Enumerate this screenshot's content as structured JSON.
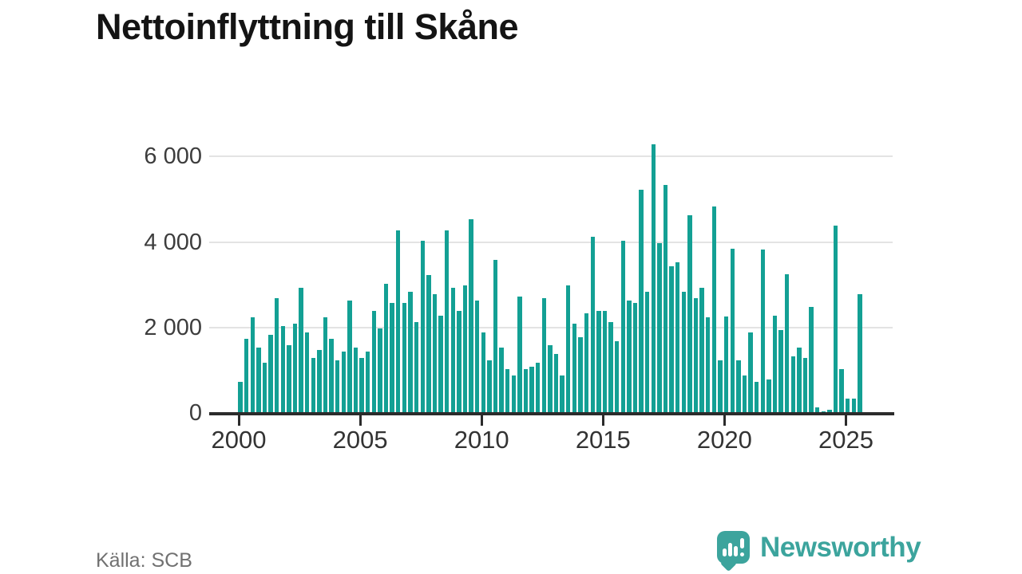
{
  "header": {
    "title": "Nettoinflyttning till Skåne"
  },
  "footer": {
    "source": "Källa: SCB",
    "brand": "Newsworthy"
  },
  "colors": {
    "bar": "#13A094",
    "brand_teal": "#3CA49D",
    "axis": "#2b2b2b",
    "grid": "#e3e3e3",
    "title_text": "#141414",
    "source_text": "#717171"
  },
  "chart_data": {
    "type": "bar",
    "title": "Nettoinflyttning till Skåne",
    "frequency": "quarterly",
    "start_period": "2000-Q1",
    "end_period": "2025-Q3",
    "ylim": [
      0,
      6600
    ],
    "grid": "horizontal",
    "legend": "none",
    "y_ticks": [
      {
        "value": 0,
        "label": "0"
      },
      {
        "value": 2000,
        "label": "2 000"
      },
      {
        "value": 4000,
        "label": "4 000"
      },
      {
        "value": 6000,
        "label": "6 000"
      }
    ],
    "x_ticks": [
      {
        "year": 2000,
        "label": "2000"
      },
      {
        "year": 2005,
        "label": "2005"
      },
      {
        "year": 2010,
        "label": "2010"
      },
      {
        "year": 2015,
        "label": "2015"
      },
      {
        "year": 2020,
        "label": "2020"
      },
      {
        "year": 2025,
        "label": "2025"
      }
    ],
    "values": [
      750,
      1750,
      2250,
      1550,
      1200,
      1850,
      2700,
      2050,
      1600,
      2100,
      2950,
      1900,
      1300,
      1500,
      2250,
      1750,
      1250,
      1450,
      2650,
      1550,
      1300,
      1450,
      2400,
      2000,
      3050,
      2600,
      4300,
      2600,
      2850,
      2150,
      4050,
      3250,
      2800,
      2300,
      4300,
      2950,
      2400,
      3000,
      4550,
      2650,
      1900,
      1250,
      3600,
      1550,
      1050,
      900,
      2750,
      1050,
      1100,
      1200,
      2700,
      1600,
      1400,
      900,
      3000,
      2100,
      1800,
      2350,
      4150,
      2400,
      2400,
      2150,
      1700,
      4050,
      2650,
      2600,
      5250,
      2850,
      6300,
      4000,
      5350,
      3450,
      3550,
      2850,
      4650,
      2700,
      2950,
      2250,
      4850,
      1250,
      2280,
      3870,
      1250,
      900,
      1900,
      750,
      3850,
      800,
      2300,
      1950,
      3270,
      1350,
      1550,
      1300,
      2500,
      150,
      50,
      100,
      4400,
      1050,
      350,
      350,
      2800
    ]
  }
}
